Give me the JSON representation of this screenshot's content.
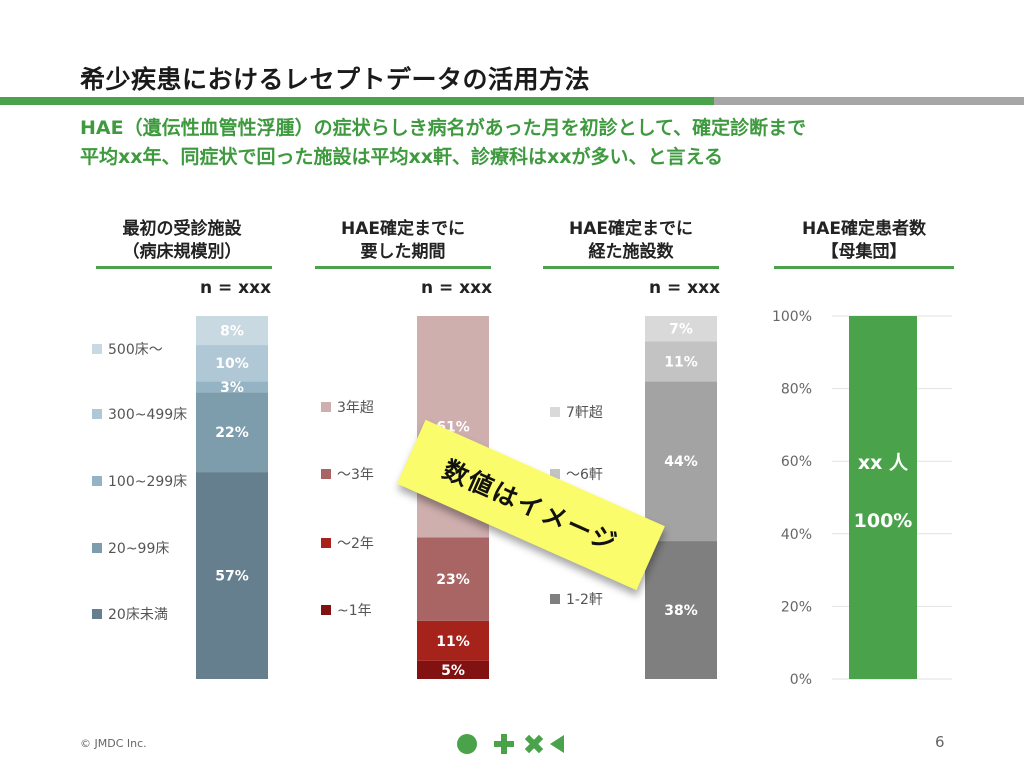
{
  "title": "希少疾患におけるレセプトデータの活用方法",
  "subtitle_line1": "HAE（遺伝性血管性浮腫）の症状らしき病名があった月を初診として、確定診断まで",
  "subtitle_line2": "平均xx年、同症状で回った施設は平均xx軒、診療科はxxが多い、と言える",
  "overlay_label": "数値はイメージ",
  "footer": {
    "copyright": "© JMDC Inc.",
    "page": "6"
  },
  "panels": {
    "p1": {
      "title1": "最初の受診施設",
      "title2": "（病床規模別）",
      "n": "n = xxx"
    },
    "p2": {
      "title1": "HAE確定までに",
      "title2": "要した期間",
      "n": "n = xxx"
    },
    "p3": {
      "title1": "HAE確定までに",
      "title2": "経た施設数",
      "n": "n = xxx"
    },
    "p4": {
      "title1": "HAE確定患者数",
      "title2": "【母集団】"
    }
  },
  "colors": {
    "accent_green": "#4aa34a",
    "p1": [
      "#657f8e",
      "#7d9dad",
      "#94b3c4",
      "#b0c8d5",
      "#c9d9e2"
    ],
    "p2": [
      "#821212",
      "#a6231b",
      "#a96464",
      "#cfaeae"
    ],
    "p3": [
      "#7f7f7f",
      "#a3a3a3",
      "#c3c3c3",
      "#d9d9d9"
    ],
    "p4": "#4aa34a"
  },
  "chart_data": [
    {
      "type": "bar",
      "stacked": true,
      "ylim": [
        0,
        100
      ],
      "legend": [
        "500床～",
        "300~499床",
        "100~299床",
        "20~99床",
        "20床未満"
      ],
      "series": [
        {
          "name": "20床未満",
          "value": 57,
          "label": "57%"
        },
        {
          "name": "20~99床",
          "value": 22,
          "label": "22%"
        },
        {
          "name": "100~299床",
          "value": 3,
          "label": "3%"
        },
        {
          "name": "300~499床",
          "value": 10,
          "label": "10%"
        },
        {
          "name": "500床～",
          "value": 8,
          "label": "8%"
        }
      ]
    },
    {
      "type": "bar",
      "stacked": true,
      "ylim": [
        0,
        100
      ],
      "legend": [
        "3年超",
        "～3年",
        "～2年",
        "~1年"
      ],
      "series": [
        {
          "name": "~1年",
          "value": 5,
          "label": "5%"
        },
        {
          "name": "～2年",
          "value": 11,
          "label": "11%"
        },
        {
          "name": "～3年",
          "value": 23,
          "label": "23%"
        },
        {
          "name": "3年超",
          "value": 61,
          "label": "61%"
        }
      ]
    },
    {
      "type": "bar",
      "stacked": true,
      "ylim": [
        0,
        100
      ],
      "legend": [
        "7軒超",
        "～6軒",
        "",
        "1-2軒"
      ],
      "series": [
        {
          "name": "1-2軒",
          "value": 38,
          "label": "38%"
        },
        {
          "name": "",
          "value": 44,
          "label": "44%"
        },
        {
          "name": "～6軒",
          "value": 11,
          "label": "11%"
        },
        {
          "name": "7軒超",
          "value": 7,
          "label": "7%"
        }
      ]
    },
    {
      "type": "bar",
      "ylim": [
        0,
        100
      ],
      "yticks": [
        "0%",
        "20%",
        "40%",
        "60%",
        "80%",
        "100%"
      ],
      "series": [
        {
          "name": "",
          "value": 100,
          "label": "100%",
          "inner_label": "xx 人"
        }
      ]
    }
  ]
}
